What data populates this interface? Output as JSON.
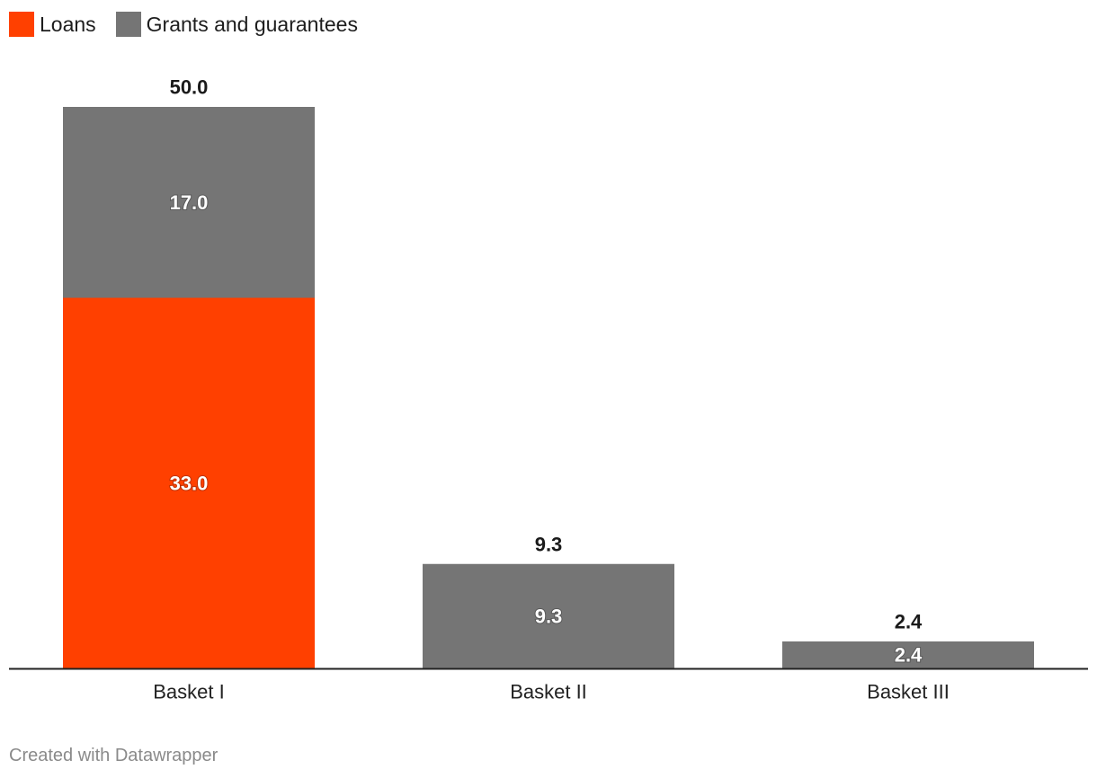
{
  "chart_data": {
    "type": "bar",
    "stacked": true,
    "categories": [
      "Basket I",
      "Basket II",
      "Basket III"
    ],
    "series": [
      {
        "name": "Loans",
        "color": "#ff4000",
        "values": [
          33.0,
          0,
          0
        ]
      },
      {
        "name": "Grants and guarantees",
        "color": "#757575",
        "values": [
          17.0,
          9.3,
          2.4
        ]
      }
    ],
    "totals": [
      50.0,
      9.3,
      2.4
    ],
    "segment_labels": [
      {
        "category": "Basket I",
        "series": "Loans",
        "label": "33.0"
      },
      {
        "category": "Basket I",
        "series": "Grants and guarantees",
        "label": "17.0"
      },
      {
        "category": "Basket II",
        "series": "Grants and guarantees",
        "label": "9.3"
      },
      {
        "category": "Basket III",
        "series": "Grants and guarantees",
        "label": "2.4"
      }
    ],
    "total_labels": [
      "50.0",
      "9.3",
      "2.4"
    ],
    "ylim": [
      0,
      50
    ],
    "legend_position": "top-left"
  },
  "legend": {
    "items": [
      {
        "label": "Loans",
        "color": "#ff4000"
      },
      {
        "label": "Grants and guarantees",
        "color": "#757575"
      }
    ]
  },
  "footer": {
    "credit": "Created with Datawrapper"
  }
}
